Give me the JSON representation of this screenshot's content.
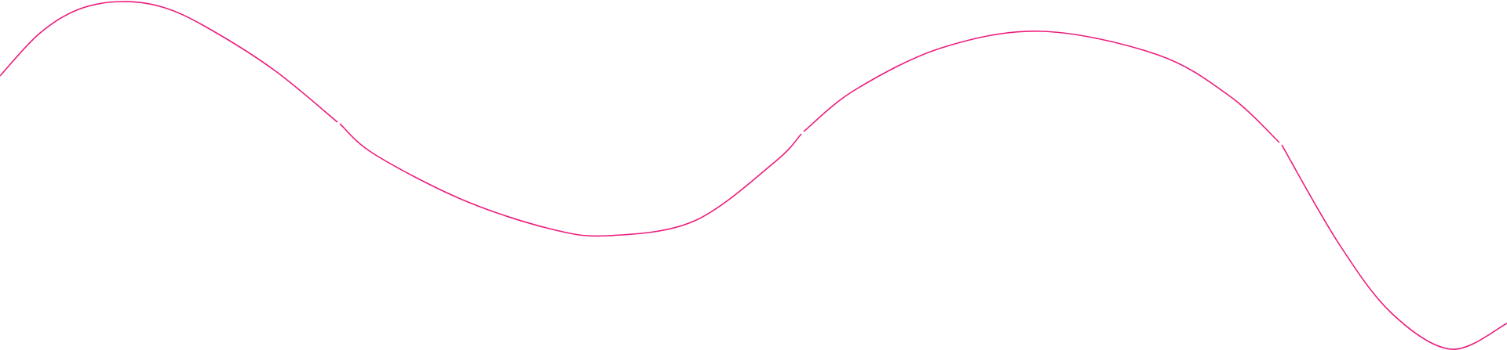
{
  "decoration": {
    "type": "wavy-line",
    "stroke_color": "#ec1c7c",
    "background_color": "#ffffff",
    "segment_count": 4
  }
}
